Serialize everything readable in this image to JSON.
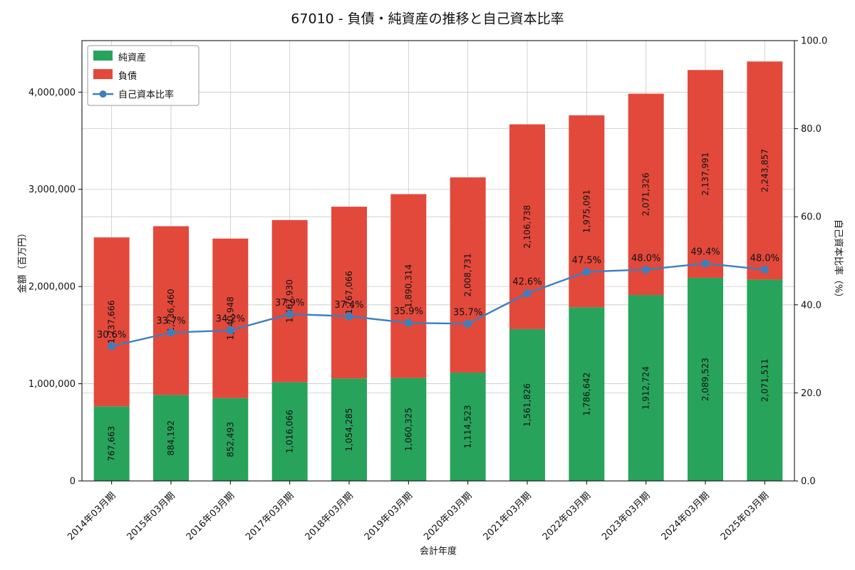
{
  "chart_data": {
    "type": "bar",
    "stacked": true,
    "overlay": "line",
    "title": "67010 - 負債・純資産の推移と自己資本比率",
    "xlabel": "会計年度",
    "ylabel_left": "金額（百万円）",
    "ylabel_right": "自己資本比率（%）",
    "categories": [
      "2014年03月期",
      "2015年03月期",
      "2016年03月期",
      "2017年03月期",
      "2018年03月期",
      "2019年03月期",
      "2020年03月期",
      "2021年03月期",
      "2022年03月期",
      "2023年03月期",
      "2024年03月期",
      "2025年03月期"
    ],
    "series": [
      {
        "name": "純資産",
        "type": "bar",
        "axis": "left",
        "color": "#28a35c",
        "values": [
          767663,
          884192,
          852493,
          1016066,
          1054285,
          1060325,
          1114523,
          1561826,
          1786642,
          1912724,
          2089523,
          2071511
        ]
      },
      {
        "name": "負債",
        "type": "bar",
        "axis": "left",
        "color": "#e2493b",
        "values": [
          1737666,
          1736460,
          1640948,
          1667930,
          1767066,
          1890314,
          2008731,
          2106738,
          1975091,
          2071326,
          2137991,
          2243857
        ]
      },
      {
        "name": "自己資本比率",
        "type": "line",
        "axis": "right",
        "color": "#3c7fbe",
        "values": [
          30.6,
          33.7,
          34.2,
          37.9,
          37.4,
          35.9,
          35.7,
          42.6,
          47.5,
          48.0,
          49.4,
          48.0
        ]
      }
    ],
    "ylim_left": [
      0,
      4530000
    ],
    "ylim_right": [
      0,
      100
    ],
    "yticks_left": [
      0,
      1000000,
      2000000,
      3000000,
      4000000
    ],
    "yticks_right": [
      0,
      20,
      40,
      60,
      80,
      100
    ],
    "grid": true,
    "legend_position": "upper left",
    "colors": {
      "grid": "#c8c8c8",
      "plot_border": "#000000",
      "bar_value_label": "#000000",
      "pct_label": "#6699cc",
      "legend_border": "#9a9a9a",
      "background": "#ffffff"
    }
  }
}
